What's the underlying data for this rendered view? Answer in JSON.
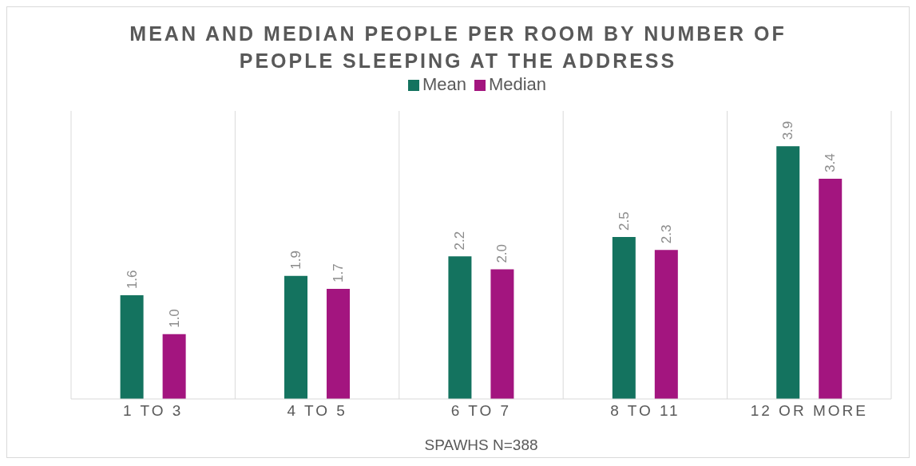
{
  "chart_data": {
    "type": "bar",
    "title": "MEAN AND MEDIAN PEOPLE PER ROOM BY NUMBER OF PEOPLE SLEEPING AT THE ADDRESS",
    "xlabel": "SPAWHS N=388",
    "categories": [
      "1 TO 3",
      "4 TO 5",
      "6 TO 7",
      "8 TO 11",
      "12 OR MORE"
    ],
    "series": [
      {
        "name": "Mean",
        "color": "#14735f",
        "values": [
          1.6,
          1.9,
          2.2,
          2.5,
          3.9
        ],
        "value_labels": [
          "1.6",
          "1.9",
          "2.2",
          "2.5",
          "3.9"
        ]
      },
      {
        "name": "Median",
        "color": "#a3157f",
        "values": [
          1.0,
          1.7,
          2.0,
          2.3,
          3.4
        ],
        "value_labels": [
          "1.0",
          "1.7",
          "2.0",
          "2.3",
          "3.4"
        ]
      }
    ],
    "legend": "top",
    "grid": "x"
  }
}
